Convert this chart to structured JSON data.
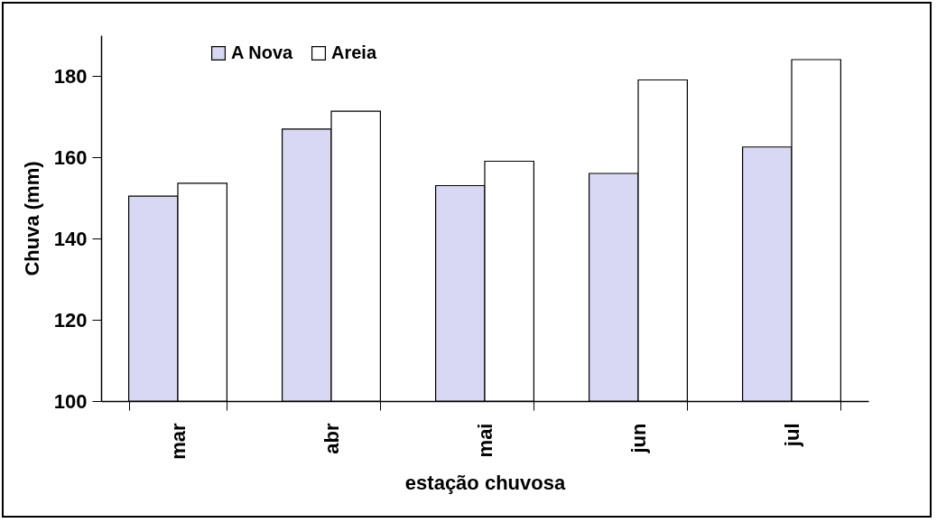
{
  "chart_data": {
    "type": "bar",
    "xlabel": "estação chuvosa",
    "ylabel": "Chuva (mm)",
    "categories": [
      "mar",
      "abr",
      "mai",
      "jun",
      "jul"
    ],
    "series": [
      {
        "name": "A Nova",
        "color": "#d8d8f4",
        "values": [
          150.4,
          166.9,
          153,
          156,
          162.5
        ]
      },
      {
        "name": "Areia",
        "color": "#ffffff",
        "values": [
          153.6,
          171.3,
          159,
          179,
          184
        ]
      }
    ],
    "ylim": [
      100,
      190
    ],
    "yticks": [
      100,
      120,
      140,
      160,
      180
    ],
    "grid": false,
    "legend": "top left"
  }
}
